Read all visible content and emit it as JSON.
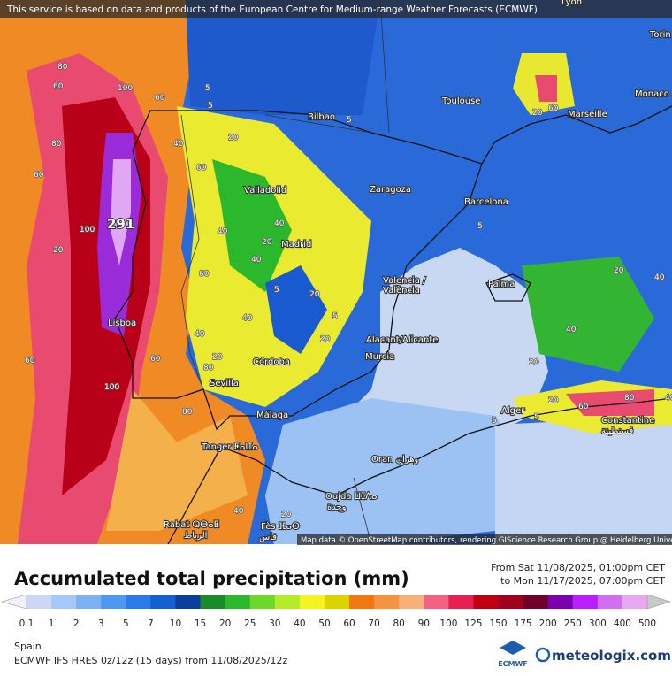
{
  "notice": "This service is based on data and products of the European Centre for Medium-range Weather Forecasts (ECMWF)",
  "map": {
    "cities": [
      "Lyon",
      "Torin",
      "Monaco",
      "Bilbao",
      "Toulouse",
      "Marseille",
      "Valladolid",
      "Zaragoza",
      "Barcelona",
      "Madrid",
      "Valencia /",
      "València",
      "Palma",
      "Lisboa",
      "Alacant/Alicante",
      "Murcia",
      "Córdoba",
      "Sevilla",
      "Málaga",
      "Alger",
      "Constantine",
      "قسنطينة",
      "Tanger ⵟⴰⵏⵊⴰ",
      "Oran وهران",
      "Oujda ⵡⵊⴷⴰ",
      "وجدة",
      "Rabat ⵕⴱⴰⵟ",
      "الرباط",
      "Fès ⴼⴰⵙ",
      "فاس"
    ],
    "max_label": "291",
    "contour_labels": [
      80,
      60,
      100,
      60,
      80,
      60,
      100,
      20,
      5,
      5,
      5,
      40,
      20,
      60,
      40,
      40,
      20,
      40,
      60,
      40,
      20,
      5,
      20,
      40,
      20,
      5,
      60,
      80,
      100,
      60,
      80,
      40,
      20,
      5,
      5,
      20,
      40,
      60,
      80,
      40,
      20,
      60,
      20,
      40,
      5,
      20
    ],
    "attribution": "Map data © OpenStreetMap contributors, rendering GIScience Research Group @ Heidelberg University"
  },
  "legend": {
    "title": "Accumulated total precipitation (mm)",
    "from": "From Sat 11/08/2025, 01:00pm CET",
    "to": "to Mon 11/17/2025, 07:00pm CET",
    "labels": [
      0.1,
      1,
      2,
      3,
      5,
      7,
      10,
      15,
      20,
      25,
      30,
      40,
      50,
      60,
      70,
      80,
      90,
      100,
      125,
      150,
      175,
      200,
      250,
      300,
      400,
      500
    ],
    "colors": [
      "#f0f0fa",
      "#ccd6f6",
      "#a4c8f8",
      "#7cb2f4",
      "#4e98f0",
      "#2a7ae8",
      "#1460d0",
      "#0c3c9c",
      "#1a8a2a",
      "#2cb82c",
      "#6cd82a",
      "#b4ec2a",
      "#f4f420",
      "#dcd400",
      "#f07810",
      "#f49440",
      "#f8b07a",
      "#f26282",
      "#e62050",
      "#c00010",
      "#a0001e",
      "#70002a",
      "#7a00b0",
      "#b820ff",
      "#d070f0",
      "#e8a8f0",
      "#f4e4f8",
      "#c8c8c8"
    ]
  },
  "footer": {
    "region": "Spain",
    "model": "ECMWF IFS HRES 0z/12z (15 days) from 11/08/2025/12z",
    "ecmwf": "ECMWF",
    "brand": "meteologix.com"
  }
}
